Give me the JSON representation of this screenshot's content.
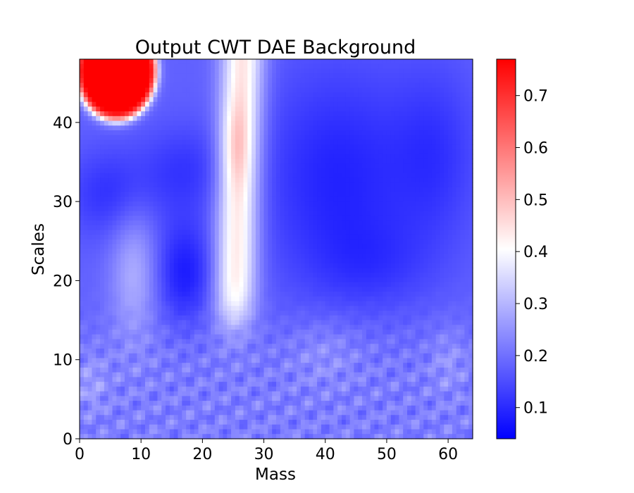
{
  "chart_data": {
    "type": "heatmap",
    "title": "Output CWT DAE Background",
    "xlabel": "Mass",
    "ylabel": "Scales",
    "xlim": [
      0,
      64
    ],
    "ylim": [
      0,
      48
    ],
    "x_ticks": [
      0,
      10,
      20,
      30,
      40,
      50,
      60
    ],
    "y_ticks": [
      0,
      10,
      20,
      30,
      40
    ],
    "colormap": "bwr",
    "colormap_colors": [
      "#0000ff",
      "#ffffff",
      "#ff0000"
    ],
    "value_range": [
      0.04,
      0.77
    ],
    "colorbar_ticks": [
      0.1,
      0.2,
      0.3,
      0.4,
      0.5,
      0.6,
      0.7
    ],
    "grid": false,
    "background_level": 0.13,
    "features": [
      {
        "label": "hot spot",
        "x": 6,
        "y": 46,
        "value": 0.77
      },
      {
        "label": "vertical ridge peak",
        "x": 25.5,
        "y": 37,
        "value": 0.45
      },
      {
        "label": "vertical ridge",
        "x": 26,
        "y": 28,
        "value": 0.38
      },
      {
        "label": "vertical ridge low",
        "x": 26,
        "y": 18,
        "value": 0.32
      },
      {
        "label": "secondary ridge",
        "x": 9,
        "y": 20,
        "value": 0.27
      },
      {
        "label": "deep minimum",
        "x": 17,
        "y": 21,
        "value": 0.07
      },
      {
        "label": "right minimum",
        "x": 44,
        "y": 34,
        "value": 0.08
      },
      {
        "label": "left minimum",
        "x": 5,
        "y": 32,
        "value": 0.09
      }
    ]
  }
}
